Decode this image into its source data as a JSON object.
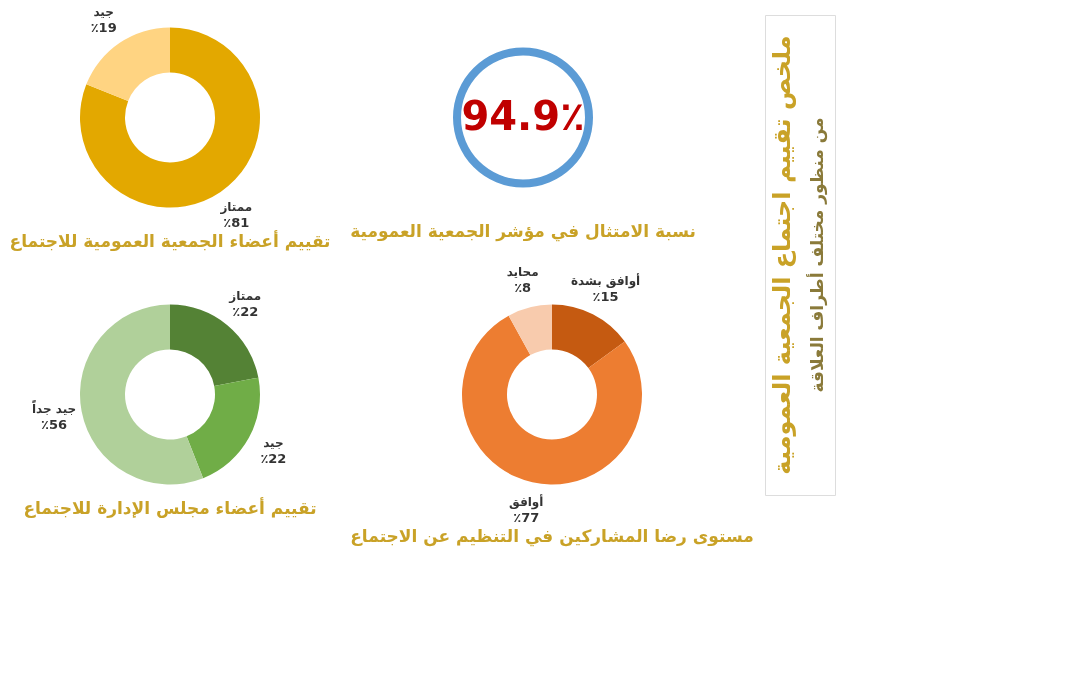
{
  "chart_data": [
    {
      "type": "donut",
      "title": "تقييم أعضاء الجمعية العمومية للاجتماع",
      "categories": [
        "ممتاز",
        "جيد"
      ],
      "values": [
        81,
        19
      ],
      "colors": [
        "#e3a800",
        "#ffd482"
      ],
      "value_labels": [
        "٪81",
        "٪19"
      ]
    },
    {
      "type": "other",
      "title": "نسبة الامتثال في مؤشر الجمعية العمومية",
      "values": [
        94.9
      ],
      "value_labels": [
        "94.9٪"
      ],
      "colors": [
        "#5b9bd5"
      ]
    },
    {
      "type": "donut",
      "title": "تقييم أعضاء مجلس الإدارة للاجتماع",
      "categories": [
        "ممتاز",
        "جيد",
        "جيد جداً"
      ],
      "values": [
        22,
        22,
        56
      ],
      "colors": [
        "#548235",
        "#70ad47",
        "#b0d09a"
      ],
      "value_labels": [
        "٪22",
        "٪22",
        "٪56"
      ]
    },
    {
      "type": "donut",
      "title": "مستوى رضا المشاركين في التنظيم عن الاجتماع",
      "categories": [
        "أوافق بشدة",
        "أوافق",
        "محايد"
      ],
      "values": [
        15,
        77,
        8
      ],
      "colors": [
        "#c55a11",
        "#ed7d31",
        "#f8cbad"
      ],
      "value_labels": [
        "٪15",
        "٪77",
        "٪8"
      ]
    },
    {
      "type": "other",
      "title": "ملخص تقييم اجتماع الجمعية العمومية",
      "subtitle": "من منظور مختلف أطراف العلاقة"
    }
  ]
}
